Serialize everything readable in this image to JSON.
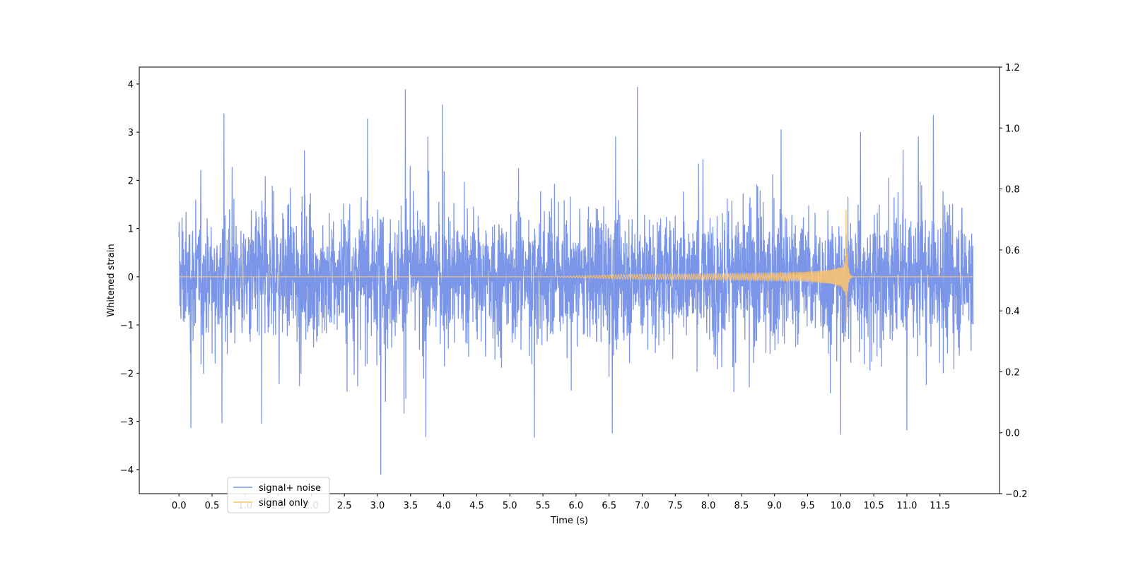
{
  "chart_data": {
    "type": "line",
    "title": "",
    "xlabel": "Time (s)",
    "ylabel": "Whitened strain",
    "y2label": "",
    "xlim": [
      -0.6,
      12.4
    ],
    "ylim": [
      -4.5,
      4.35
    ],
    "y2lim": [
      -0.2,
      1.2
    ],
    "xticks": [
      0.0,
      0.5,
      1.0,
      1.5,
      2.0,
      2.5,
      3.0,
      3.5,
      4.0,
      4.5,
      5.0,
      5.5,
      6.0,
      6.5,
      7.0,
      7.5,
      8.0,
      8.5,
      9.0,
      9.5,
      10.0,
      10.5,
      11.0,
      11.5
    ],
    "xtick_labels": [
      "0.0",
      "0.5",
      "1.0",
      "1.5",
      "2.0",
      "2.5",
      "3.0",
      "3.5",
      "4.0",
      "4.5",
      "5.0",
      "5.5",
      "6.0",
      "6.5",
      "7.0",
      "7.5",
      "8.0",
      "8.5",
      "9.0",
      "9.5",
      "10.0",
      "10.5",
      "11.0",
      "11.5"
    ],
    "yticks": [
      -4,
      -3,
      -2,
      -1,
      0,
      1,
      2,
      3,
      4
    ],
    "ytick_labels": [
      "−4",
      "−3",
      "−2",
      "−1",
      "0",
      "1",
      "2",
      "3",
      "4"
    ],
    "y2ticks": [
      -0.2,
      0.0,
      0.2,
      0.4,
      0.6,
      0.8,
      1.0,
      1.2
    ],
    "y2tick_labels": [
      "−0.2",
      "0.0",
      "0.2",
      "0.4",
      "0.6",
      "0.8",
      "1.0",
      "1.2"
    ],
    "grid": false,
    "legend_position": "lower-left",
    "series": [
      {
        "name": "signal+ noise",
        "color": "#7b96e8",
        "x_range": [
          0.0,
          12.0
        ],
        "envelope_typical": [
          -1.6,
          1.5
        ],
        "peaks": [
          {
            "x": 0.68,
            "y": 3.38
          },
          {
            "x": 3.42,
            "y": 3.88
          },
          {
            "x": 3.98,
            "y": 3.57
          },
          {
            "x": 6.93,
            "y": 3.93
          },
          {
            "x": 11.4,
            "y": 3.35
          },
          {
            "x": 2.85,
            "y": 3.28
          },
          {
            "x": 3.05,
            "y": -4.1
          },
          {
            "x": 0.18,
            "y": -3.13
          },
          {
            "x": 0.65,
            "y": -3.03
          },
          {
            "x": 1.25,
            "y": -3.04
          },
          {
            "x": 3.73,
            "y": -3.32
          },
          {
            "x": 5.37,
            "y": -3.33
          },
          {
            "x": 6.55,
            "y": -3.24
          },
          {
            "x": 10.0,
            "y": -3.27
          },
          {
            "x": 11.0,
            "y": -3.18
          },
          {
            "x": 9.1,
            "y": 3.05
          },
          {
            "x": 10.3,
            "y": 3.0
          }
        ]
      },
      {
        "name": "signal only",
        "color": "#ffc46b",
        "x_range": [
          0.0,
          12.0
        ],
        "chirp_start": 5.5,
        "merger_x": 10.08,
        "merger_peak": 1.38,
        "merger_trough": -0.95
      }
    ]
  }
}
